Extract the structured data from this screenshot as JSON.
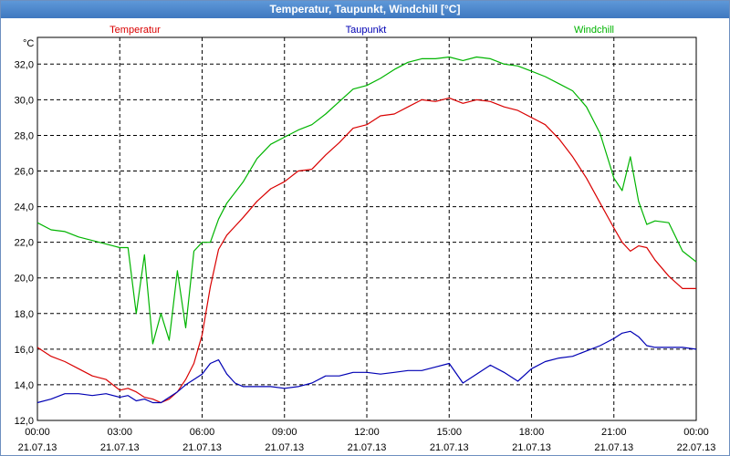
{
  "window": {
    "title": "Temperatur, Taupunkt, Windchill [°C]"
  },
  "colors": {
    "Temperatur": "#d90000",
    "Taupunkt": "#0000b4",
    "Windchill": "#00b400",
    "grid": "#000000"
  },
  "chart_data": {
    "type": "line",
    "title": "Temperatur, Taupunkt, Windchill [°C]",
    "ylabel": "°C",
    "ylim": [
      12,
      33.5
    ],
    "xlim": [
      0,
      24
    ],
    "grid": true,
    "legend_placement": "top",
    "y_ticks": [
      "12,0",
      "14,0",
      "16,0",
      "18,0",
      "20,0",
      "22,0",
      "24,0",
      "26,0",
      "28,0",
      "30,0",
      "32,0"
    ],
    "x_ticks": [
      {
        "time": "00:00",
        "date": "21.07.13"
      },
      {
        "time": "03:00",
        "date": "21.07.13"
      },
      {
        "time": "06:00",
        "date": "21.07.13"
      },
      {
        "time": "09:00",
        "date": "21.07.13"
      },
      {
        "time": "12:00",
        "date": "21.07.13"
      },
      {
        "time": "15:00",
        "date": "21.07.13"
      },
      {
        "time": "18:00",
        "date": "21.07.13"
      },
      {
        "time": "21:00",
        "date": "21.07.13"
      },
      {
        "time": "00:00",
        "date": "22.07.13"
      }
    ],
    "x": [
      0,
      0.5,
      1,
      1.5,
      2,
      2.5,
      3,
      3.3,
      3.6,
      3.9,
      4.2,
      4.5,
      4.8,
      5.1,
      5.4,
      5.7,
      6,
      6.3,
      6.6,
      6.9,
      7.2,
      7.5,
      8,
      8.5,
      9,
      9.5,
      10,
      10.5,
      11,
      11.5,
      12,
      12.5,
      13,
      13.5,
      14,
      14.5,
      15,
      15.5,
      16,
      16.5,
      17,
      17.5,
      18,
      18.5,
      19,
      19.5,
      20,
      20.5,
      21,
      21.3,
      21.6,
      21.9,
      22.2,
      22.5,
      23,
      23.5,
      24
    ],
    "series": [
      {
        "name": "Temperatur",
        "values": [
          16.1,
          15.6,
          15.3,
          14.9,
          14.5,
          14.3,
          13.7,
          13.8,
          13.6,
          13.3,
          13.2,
          13.0,
          13.2,
          13.6,
          14.3,
          15.2,
          16.8,
          19.5,
          21.6,
          22.4,
          22.9,
          23.4,
          24.3,
          25.0,
          25.4,
          26.0,
          26.1,
          26.9,
          27.6,
          28.4,
          28.6,
          29.1,
          29.2,
          29.6,
          30.0,
          29.9,
          30.1,
          29.8,
          30.0,
          29.9,
          29.6,
          29.4,
          29.0,
          28.6,
          27.8,
          26.8,
          25.6,
          24.2,
          22.8,
          22.0,
          21.5,
          21.8,
          21.7,
          21.0,
          20.1,
          19.4,
          19.4
        ]
      },
      {
        "name": "Taupunkt",
        "values": [
          13.0,
          13.2,
          13.5,
          13.5,
          13.4,
          13.5,
          13.3,
          13.4,
          13.1,
          13.2,
          13.0,
          13.0,
          13.3,
          13.6,
          14.0,
          14.3,
          14.6,
          15.2,
          15.4,
          14.6,
          14.1,
          13.9,
          13.9,
          13.9,
          13.8,
          13.9,
          14.1,
          14.5,
          14.5,
          14.7,
          14.7,
          14.6,
          14.7,
          14.8,
          14.8,
          15.0,
          15.2,
          14.1,
          14.6,
          15.1,
          14.7,
          14.2,
          14.9,
          15.3,
          15.5,
          15.6,
          15.9,
          16.2,
          16.6,
          16.9,
          17.0,
          16.7,
          16.2,
          16.1,
          16.1,
          16.1,
          16.0
        ]
      },
      {
        "name": "Windchill",
        "values": [
          23.1,
          22.7,
          22.6,
          22.3,
          22.1,
          21.9,
          21.7,
          21.7,
          18.0,
          21.3,
          16.3,
          18.0,
          16.5,
          20.4,
          17.2,
          21.5,
          22.0,
          22.0,
          23.3,
          24.2,
          24.8,
          25.4,
          26.7,
          27.5,
          27.9,
          28.3,
          28.6,
          29.2,
          29.9,
          30.6,
          30.8,
          31.2,
          31.7,
          32.1,
          32.3,
          32.3,
          32.4,
          32.2,
          32.4,
          32.3,
          32.0,
          31.9,
          31.6,
          31.3,
          30.9,
          30.5,
          29.6,
          28.1,
          25.6,
          24.9,
          26.8,
          24.3,
          23.0,
          23.2,
          23.1,
          21.5,
          20.9
        ]
      }
    ]
  }
}
